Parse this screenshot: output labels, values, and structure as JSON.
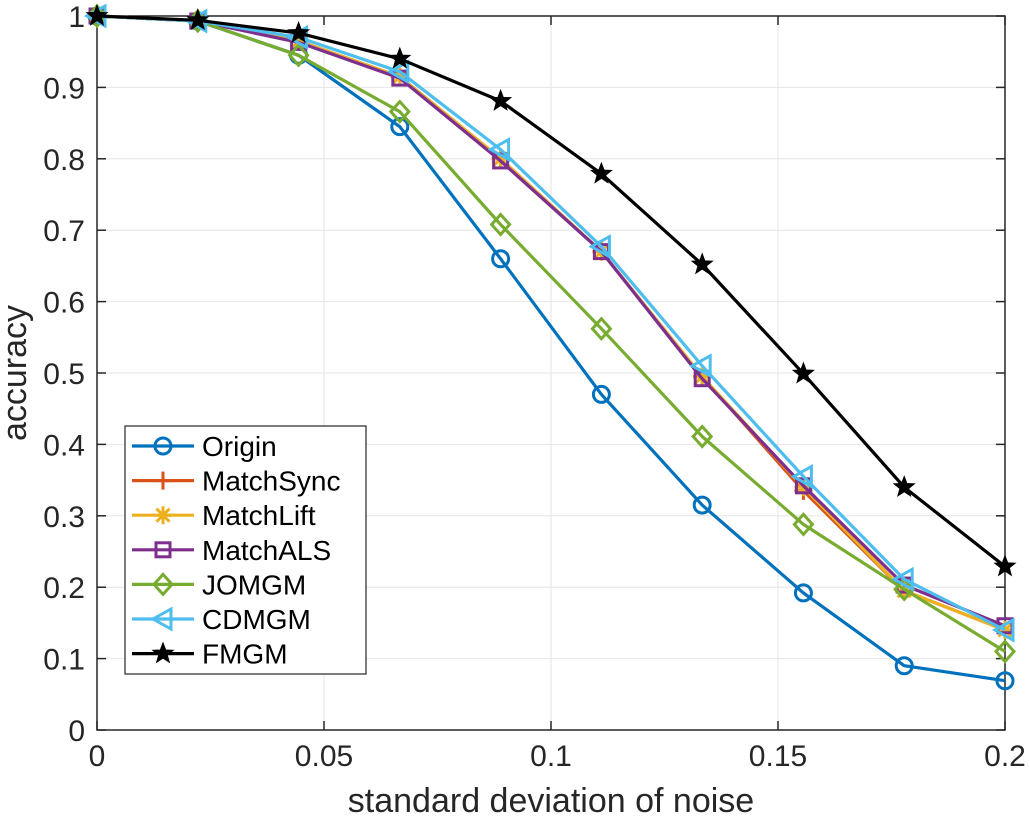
{
  "chart_data": {
    "type": "line",
    "title": "",
    "xlabel": "standard deviation of noise",
    "ylabel": "accuracy",
    "xlim": [
      0,
      0.2
    ],
    "ylim": [
      0,
      1
    ],
    "x_ticks": [
      0,
      0.05,
      0.1,
      0.15,
      0.2
    ],
    "x_tick_labels": [
      "0",
      "0.05",
      "0.1",
      "0.15",
      "0.2"
    ],
    "y_ticks": [
      0,
      0.1,
      0.2,
      0.3,
      0.4,
      0.5,
      0.6,
      0.7,
      0.8,
      0.9,
      1
    ],
    "y_tick_labels": [
      "0",
      "0.1",
      "0.2",
      "0.3",
      "0.4",
      "0.5",
      "0.6",
      "0.7",
      "0.8",
      "0.9",
      "1"
    ],
    "grid": true,
    "legend_position": "bottom-left",
    "x": [
      0,
      0.0222,
      0.0444,
      0.0667,
      0.0889,
      0.1111,
      0.1333,
      0.1556,
      0.1778,
      0.2
    ],
    "series": [
      {
        "name": "Origin",
        "color": "#0072BD",
        "marker": "circle",
        "values": [
          1.0,
          0.993,
          0.945,
          0.845,
          0.66,
          0.47,
          0.315,
          0.192,
          0.09,
          0.069
        ]
      },
      {
        "name": "MatchSync",
        "color": "#D95319",
        "marker": "plus",
        "values": [
          1.0,
          0.993,
          0.965,
          0.915,
          0.8,
          0.67,
          0.495,
          0.335,
          0.195,
          0.14
        ]
      },
      {
        "name": "MatchLift",
        "color": "#EDB120",
        "marker": "asterisk",
        "values": [
          1.0,
          0.993,
          0.965,
          0.915,
          0.8,
          0.67,
          0.495,
          0.34,
          0.195,
          0.14
        ]
      },
      {
        "name": "MatchALS",
        "color": "#7E2F8E",
        "marker": "square",
        "values": [
          1.0,
          0.993,
          0.963,
          0.913,
          0.797,
          0.67,
          0.492,
          0.342,
          0.203,
          0.146
        ]
      },
      {
        "name": "JOMGM",
        "color": "#77AC30",
        "marker": "diamond",
        "values": [
          1.0,
          0.993,
          0.945,
          0.866,
          0.708,
          0.562,
          0.411,
          0.288,
          0.197,
          0.11
        ]
      },
      {
        "name": "CDMGM",
        "color": "#4DBEEE",
        "marker": "triangle-left",
        "values": [
          1.0,
          0.993,
          0.97,
          0.922,
          0.813,
          0.677,
          0.51,
          0.355,
          0.211,
          0.14
        ]
      },
      {
        "name": "FMGM",
        "color": "#000000",
        "marker": "pentagram",
        "values": [
          1.0,
          0.994,
          0.976,
          0.94,
          0.881,
          0.779,
          0.652,
          0.499,
          0.34,
          0.229
        ]
      }
    ]
  }
}
